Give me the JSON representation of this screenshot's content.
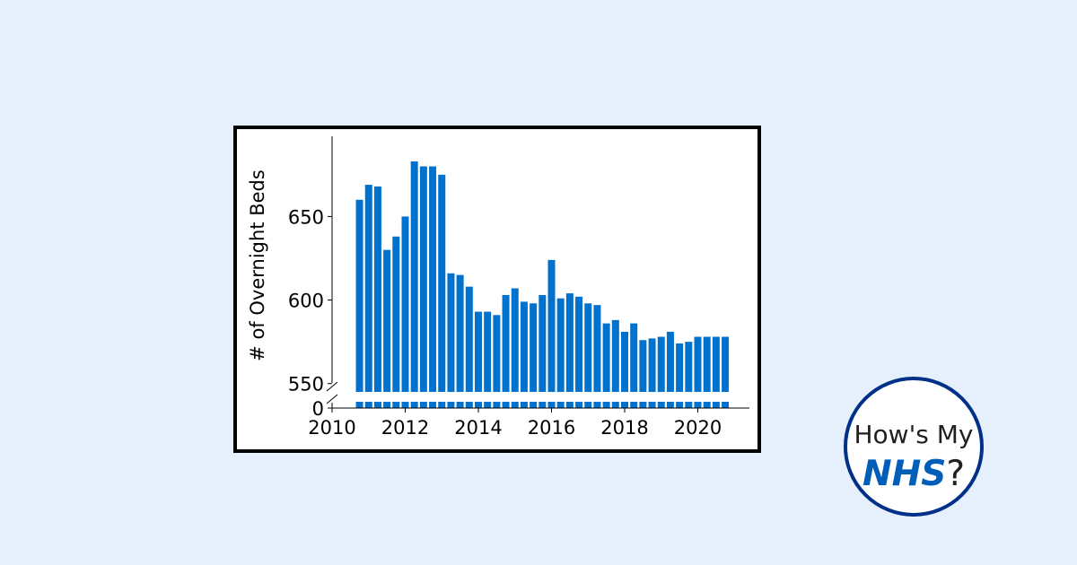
{
  "logo": {
    "line1": "How's My",
    "brand": "NHS",
    "suffix": "?"
  },
  "colors": {
    "background": "#e6f0fd",
    "bar": "#0072ce",
    "logo_border": "#003087",
    "brand_text": "#005eb8"
  },
  "chart_data": {
    "type": "bar",
    "ylabel": "# of Overnight Beds",
    "xticks": [
      2010,
      2012,
      2014,
      2016,
      2018,
      2020
    ],
    "yticks": [
      0,
      550,
      600,
      650
    ],
    "ylim_upper_segment": [
      545,
      698
    ],
    "broken_axis": true,
    "grid": false,
    "legend": "none",
    "x": [
      2010.75,
      2011.0,
      2011.25,
      2011.5,
      2011.75,
      2012.0,
      2012.25,
      2012.5,
      2012.75,
      2013.0,
      2013.25,
      2013.5,
      2013.75,
      2014.0,
      2014.25,
      2014.5,
      2014.75,
      2015.0,
      2015.25,
      2015.5,
      2015.75,
      2016.0,
      2016.25,
      2016.5,
      2016.75,
      2017.0,
      2017.25,
      2017.5,
      2017.75,
      2018.0,
      2018.25,
      2018.5,
      2018.75,
      2019.0,
      2019.25,
      2019.5,
      2019.75,
      2020.0,
      2020.25,
      2020.5,
      2020.75
    ],
    "values": [
      660,
      669,
      668,
      630,
      638,
      650,
      683,
      680,
      680,
      675,
      616,
      615,
      608,
      593,
      593,
      591,
      603,
      607,
      599,
      598,
      603,
      624,
      601,
      604,
      602,
      598,
      597,
      586,
      588,
      581,
      586,
      576,
      577,
      578,
      581,
      574,
      575,
      578,
      578,
      578,
      578
    ]
  }
}
